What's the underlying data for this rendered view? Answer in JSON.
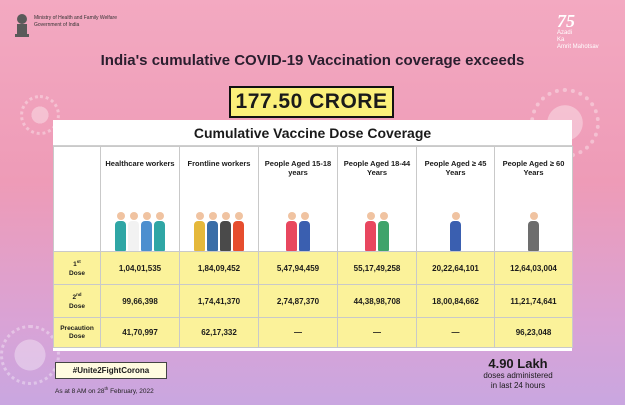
{
  "ministry": {
    "line1": "Ministry of Health and Family Welfare",
    "line2": "Government of India"
  },
  "logo": {
    "number": "75",
    "line1": "Azadi",
    "line2": "Ka",
    "line3": "Amrit Mahotsav"
  },
  "headline": {
    "prefix": "India's cumulative ",
    "bold": "COVID-19 Vaccination",
    "suffix": " coverage exceeds"
  },
  "total": "177.50 CRORE",
  "table": {
    "title": "Cumulative Vaccine Dose Coverage",
    "columns": [
      {
        "label": "Healthcare workers",
        "icon": "healthcare-workers-icon",
        "colors": [
          "#2fa6a5",
          "#f2f2f2",
          "#4d8fcf",
          "#2fa6a5"
        ]
      },
      {
        "label": "Frontline workers",
        "icon": "frontline-workers-icon",
        "colors": [
          "#e5b83b",
          "#3a6ea8",
          "#4a4a4a",
          "#e64d2e"
        ]
      },
      {
        "label": "People Aged 15-18 years",
        "icon": "teenagers-icon",
        "colors": [
          "#e8475f",
          "#3a5fb0"
        ]
      },
      {
        "label": "People Aged 18-44 Years",
        "icon": "adults-icon",
        "colors": [
          "#e8475f",
          "#3fa36b"
        ]
      },
      {
        "label": "People Aged ≥ 45 Years",
        "icon": "middle-aged-icon",
        "colors": [
          "#3a5fb0"
        ]
      },
      {
        "label": "People Aged ≥ 60 Years",
        "icon": "senior-citizen-icon",
        "colors": [
          "#6d6d6d"
        ]
      }
    ],
    "rows": [
      {
        "label": "1",
        "sup": "st",
        "label2": "Dose",
        "values": [
          "1,04,01,535",
          "1,84,09,452",
          "5,47,94,459",
          "55,17,49,258",
          "20,22,64,101",
          "12,64,03,004"
        ]
      },
      {
        "label": "2",
        "sup": "nd",
        "label2": "Dose",
        "values": [
          "99,66,398",
          "1,74,41,370",
          "2,74,87,370",
          "44,38,98,708",
          "18,00,84,662",
          "11,21,74,641"
        ]
      },
      {
        "label": "Precaution",
        "sup": "",
        "label2": "Dose",
        "values": [
          "41,70,997",
          "62,17,332",
          "—",
          "—",
          "—",
          "96,23,048"
        ]
      }
    ]
  },
  "hashtag": "#Unite2FightCorona",
  "as_at": {
    "prefix": "As at 8 AM on 28",
    "sup": "th",
    "suffix": " February, 2022"
  },
  "daily": {
    "value": "4.90 Lakh",
    "line1": "doses administered",
    "line2": "in last 24 hours"
  }
}
